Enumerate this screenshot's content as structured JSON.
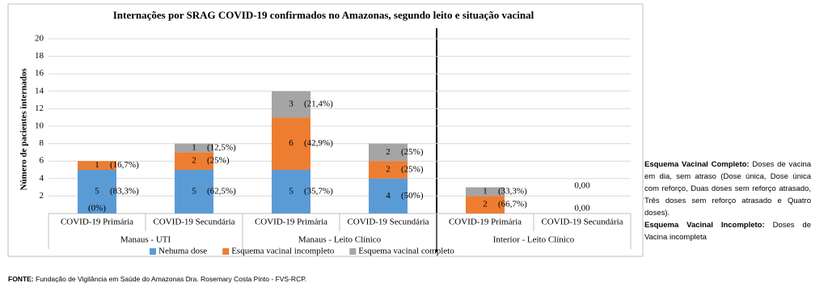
{
  "chart_data": {
    "type": "bar",
    "stacked": true,
    "title": "Internações por SRAG COVID-19 confirmados no Amazonas, segundo leito e situação vacinal",
    "y_label": "Número de pacientes internados",
    "categories": [
      "COVID-19 Primária",
      "COVID-19 Secundária",
      "COVID-19 Primária",
      "COVID-19 Secundária",
      "COVID-19 Primária",
      "COVID-19 Secundária"
    ],
    "groups": [
      "Manaus - UTI",
      "Manaus - Leito Clínico",
      "Interior - Leito Clínico"
    ],
    "series": [
      {
        "name": "Nehuma dose",
        "color": "#5b9bd5",
        "values": [
          5,
          5,
          5,
          4,
          0,
          0
        ],
        "percent_labels": [
          "(83,3%)",
          "(62,5%)",
          "(35,7%)",
          "(50%)",
          null,
          null
        ]
      },
      {
        "name": "Esquema vacinal incompleto",
        "color": "#ed7d31",
        "values": [
          1,
          2,
          6,
          2,
          2,
          0
        ],
        "percent_labels": [
          "(16,7%)",
          "(25%)",
          "(42,9%)",
          "(25%)",
          "(66,7%)",
          "0,00"
        ]
      },
      {
        "name": "Esquema vacinal completo",
        "color": "#a5a5a5",
        "values": [
          0,
          1,
          3,
          2,
          1,
          0
        ],
        "percent_labels": [
          "(0%)",
          "(12,5%)",
          "(21,4%)",
          "(25%)",
          "(33,3%)",
          "0,00"
        ]
      }
    ],
    "ylim": [
      0,
      20
    ],
    "yticks": [
      2,
      4,
      6,
      8,
      10,
      12,
      14,
      16,
      18,
      20
    ],
    "grid": true
  },
  "notes": {
    "complete_term": "Esquema Vacinal Completo:",
    "complete_text": "Doses de vacina em dia, sem atraso (Dose única, Dose única com reforço, Duas doses sem reforço atrasado, Três doses sem reforço atrasado e Quatro doses).",
    "incomplete_term": "Esquema Vacinal Incompleto:",
    "incomplete_text": "Doses de Vacina incompleta"
  },
  "footer": {
    "label": "FONTE:",
    "text": "Fundação de Vigilância em Saúde do Amazonas Dra. Rosemary Costa Pinto - FVS-RCP."
  }
}
